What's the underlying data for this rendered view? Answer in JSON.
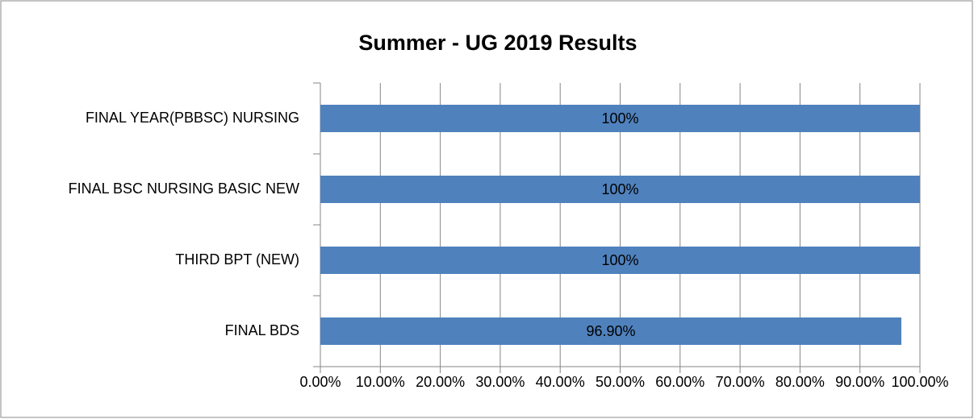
{
  "chart_data": {
    "type": "bar",
    "orientation": "horizontal",
    "title": "Summer - UG 2019 Results",
    "categories": [
      "FINAL YEAR(PBBSC) NURSING",
      "FINAL BSC NURSING BASIC NEW",
      "THIRD BPT (NEW)",
      "FINAL BDS"
    ],
    "values": [
      100,
      100,
      100,
      96.9
    ],
    "value_labels": [
      "100%",
      "100%",
      "100%",
      "96.90%"
    ],
    "color": "#4f81bd",
    "xlim": [
      0,
      100
    ],
    "xticks": [
      {
        "value": 0,
        "label": "0.00%"
      },
      {
        "value": 10,
        "label": "10.00%"
      },
      {
        "value": 20,
        "label": "20.00%"
      },
      {
        "value": 30,
        "label": "30.00%"
      },
      {
        "value": 40,
        "label": "40.00%"
      },
      {
        "value": 50,
        "label": "50.00%"
      },
      {
        "value": 60,
        "label": "60.00%"
      },
      {
        "value": 70,
        "label": "70.00%"
      },
      {
        "value": 80,
        "label": "80.00%"
      },
      {
        "value": 90,
        "label": "90.00%"
      },
      {
        "value": 100,
        "label": "100.00%"
      }
    ],
    "grid": true
  }
}
